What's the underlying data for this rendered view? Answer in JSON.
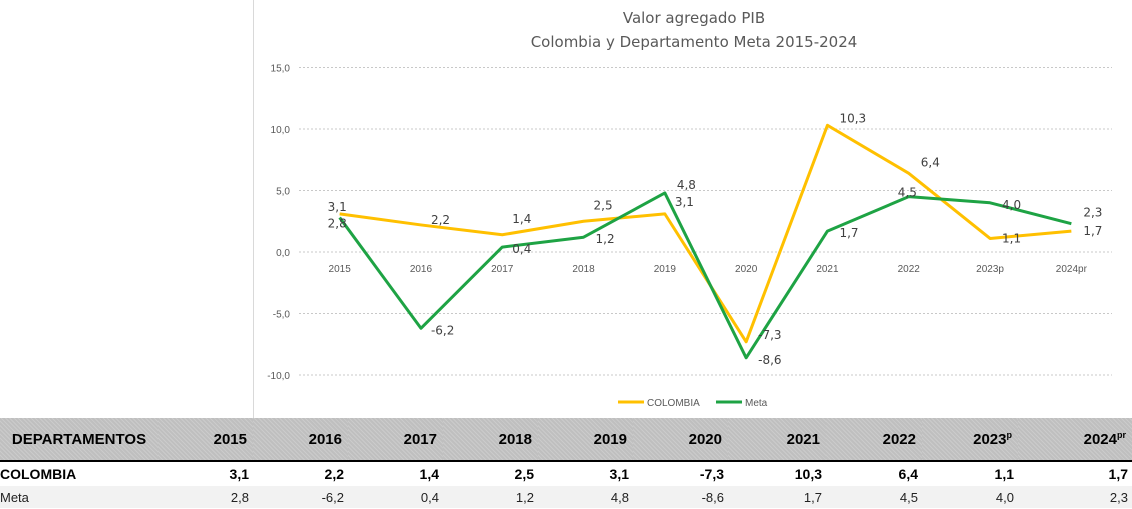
{
  "chart_data": {
    "type": "line",
    "title": "Valor agregado   PIB",
    "subtitle": "Colombia y Departamento Meta 2015-2024",
    "categories": [
      "2015",
      "2016",
      "2017",
      "2018",
      "2019",
      "2020",
      "2021",
      "2022",
      "2023p",
      "2024pr"
    ],
    "series": [
      {
        "name": "COLOMBIA",
        "color": "#ffc000",
        "values": [
          3.1,
          2.2,
          1.4,
          2.5,
          3.1,
          -7.3,
          10.3,
          6.4,
          1.1,
          1.7
        ],
        "labels": [
          "3,1",
          "2,2",
          "1,4",
          "2,5",
          "3,1",
          "-7,3",
          "10,3",
          "6,4",
          "1,1",
          "1,7"
        ]
      },
      {
        "name": "Meta",
        "color": "#1ea344",
        "values": [
          2.8,
          -6.2,
          0.4,
          1.2,
          4.8,
          -8.6,
          1.7,
          4.5,
          4.0,
          2.3
        ],
        "labels": [
          "2,8",
          "-6,2",
          "0,4",
          "1,2",
          "4,8",
          "-8,6",
          "1,7",
          "4,5",
          "4,0",
          "2,3"
        ]
      }
    ],
    "ylim": [
      -10,
      15
    ],
    "yticks": [
      15,
      10,
      5,
      0,
      -5,
      -10
    ],
    "ytick_labels": [
      "15,0",
      "10,0",
      "5,0",
      "0,0",
      "-5,0",
      "-10,0"
    ],
    "xlabel": "",
    "ylabel": "",
    "grid": true,
    "legend": "bottom-center"
  },
  "table": {
    "header": {
      "label": "DEPARTAMENTOS",
      "years": [
        {
          "text": "2015",
          "sup": ""
        },
        {
          "text": "2016",
          "sup": ""
        },
        {
          "text": "2017",
          "sup": ""
        },
        {
          "text": "2018",
          "sup": ""
        },
        {
          "text": "2019",
          "sup": ""
        },
        {
          "text": "2020",
          "sup": ""
        },
        {
          "text": "2021",
          "sup": ""
        },
        {
          "text": "2022",
          "sup": ""
        },
        {
          "text": "2023",
          "sup": "p"
        },
        {
          "text": "2024",
          "sup": "pr"
        }
      ]
    },
    "rows": [
      {
        "name": "COLOMBIA",
        "values": [
          "3,1",
          "2,2",
          "1,4",
          "2,5",
          "3,1",
          "-7,3",
          "10,3",
          "6,4",
          "1,1",
          "1,7"
        ]
      },
      {
        "name": "Meta",
        "values": [
          "2,8",
          "-6,2",
          "0,4",
          "1,2",
          "4,8",
          "-8,6",
          "1,7",
          "4,5",
          "4,0",
          "2,3"
        ]
      }
    ]
  }
}
